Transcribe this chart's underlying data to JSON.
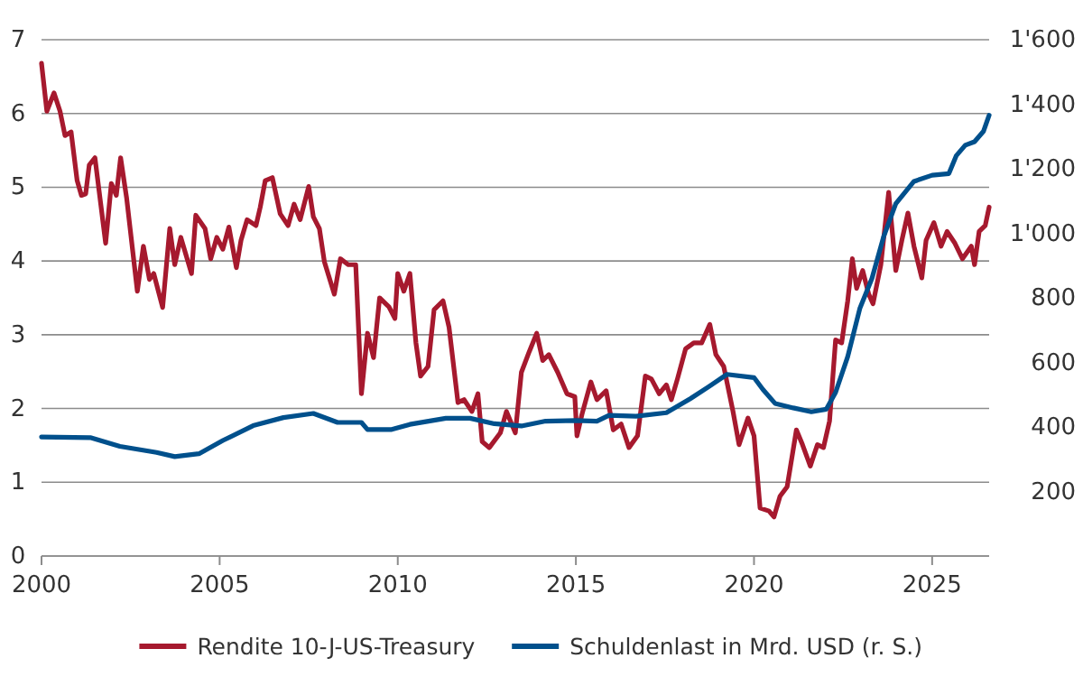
{
  "chart_data": {
    "type": "line",
    "legend": "bottom",
    "grid": "y",
    "xlim": [
      2000,
      2026.6
    ],
    "xticks": [
      2000,
      2005,
      2010,
      2015,
      2020,
      2025
    ],
    "ylim": [
      0,
      7
    ],
    "yticks": [
      0,
      1,
      2,
      3,
      4,
      5,
      6,
      7
    ],
    "y2lim": [
      0,
      1600
    ],
    "y2ticks": [
      200,
      400,
      600,
      800,
      {
        "value": 1000,
        "label": "1'000"
      },
      {
        "value": 1200,
        "label": "1'200"
      },
      {
        "value": 1400,
        "label": "1'400"
      },
      {
        "value": 1600,
        "label": "1'600"
      }
    ],
    "series": [
      {
        "name": "Rendite 10-J-US-Treasury",
        "color": "#a6192e",
        "x": [
          2000.0,
          2000.15,
          2000.35,
          2000.52,
          2000.66,
          2000.83,
          2001.0,
          2001.12,
          2001.24,
          2001.34,
          2001.5,
          2001.8,
          2001.96,
          2002.1,
          2002.22,
          2002.39,
          2002.69,
          2002.86,
          2003.03,
          2003.15,
          2003.4,
          2003.6,
          2003.74,
          2003.91,
          2004.21,
          2004.33,
          2004.59,
          2004.75,
          2004.92,
          2005.09,
          2005.26,
          2005.47,
          2005.6,
          2005.77,
          2006.02,
          2006.14,
          2006.28,
          2006.48,
          2006.7,
          2006.92,
          2007.09,
          2007.26,
          2007.5,
          2007.63,
          2007.8,
          2007.94,
          2008.22,
          2008.39,
          2008.61,
          2008.82,
          2008.98,
          2009.15,
          2009.32,
          2009.49,
          2009.75,
          2009.92,
          2010.0,
          2010.17,
          2010.34,
          2010.51,
          2010.64,
          2010.85,
          2011.02,
          2011.27,
          2011.44,
          2011.69,
          2011.86,
          2012.08,
          2012.25,
          2012.37,
          2012.57,
          2012.88,
          2013.05,
          2013.3,
          2013.47,
          2013.69,
          2013.9,
          2014.07,
          2014.24,
          2014.49,
          2014.75,
          2014.97,
          2015.03,
          2015.17,
          2015.42,
          2015.59,
          2015.85,
          2016.05,
          2016.27,
          2016.49,
          2016.73,
          2016.95,
          2017.12,
          2017.34,
          2017.54,
          2017.68,
          2017.85,
          2018.08,
          2018.31,
          2018.53,
          2018.76,
          2018.93,
          2019.15,
          2019.41,
          2019.58,
          2019.83,
          2020.0,
          2020.17,
          2020.42,
          2020.56,
          2020.73,
          2020.93,
          2021.19,
          2021.36,
          2021.58,
          2021.78,
          2021.95,
          2022.12,
          2022.29,
          2022.46,
          2022.63,
          2022.76,
          2022.88,
          2023.05,
          2023.22,
          2023.34,
          2023.56,
          2023.78,
          2023.98,
          2024.15,
          2024.32,
          2024.49,
          2024.71,
          2024.83,
          2025.05,
          2025.25,
          2025.42,
          2025.64,
          2025.85,
          2026.1,
          2026.19,
          2026.32,
          2026.49,
          2026.6
        ],
        "values": [
          6.68,
          6.03,
          6.28,
          6.03,
          5.7,
          5.75,
          5.09,
          4.89,
          4.91,
          5.3,
          5.4,
          4.24,
          5.05,
          4.89,
          5.4,
          4.85,
          3.59,
          4.2,
          3.75,
          3.83,
          3.37,
          4.44,
          3.95,
          4.32,
          3.83,
          4.62,
          4.44,
          4.03,
          4.32,
          4.16,
          4.46,
          3.91,
          4.28,
          4.56,
          4.48,
          4.73,
          5.09,
          5.13,
          4.64,
          4.48,
          4.77,
          4.56,
          5.01,
          4.6,
          4.44,
          3.99,
          3.55,
          4.03,
          3.95,
          3.95,
          2.2,
          3.02,
          2.69,
          3.5,
          3.38,
          3.22,
          3.83,
          3.59,
          3.83,
          2.89,
          2.44,
          2.57,
          3.34,
          3.46,
          3.1,
          2.08,
          2.12,
          1.96,
          2.2,
          1.55,
          1.47,
          1.67,
          1.96,
          1.67,
          2.49,
          2.77,
          3.02,
          2.65,
          2.73,
          2.49,
          2.2,
          2.16,
          1.63,
          1.92,
          2.36,
          2.12,
          2.24,
          1.71,
          1.79,
          1.47,
          1.63,
          2.44,
          2.4,
          2.2,
          2.32,
          2.12,
          2.4,
          2.81,
          2.89,
          2.89,
          3.14,
          2.73,
          2.57,
          1.96,
          1.51,
          1.87,
          1.63,
          0.65,
          0.61,
          0.53,
          0.81,
          0.94,
          1.71,
          1.51,
          1.22,
          1.51,
          1.47,
          1.83,
          2.93,
          2.89,
          3.46,
          4.03,
          3.63,
          3.87,
          3.55,
          3.42,
          3.95,
          4.93,
          3.87,
          4.28,
          4.65,
          4.2,
          3.77,
          4.28,
          4.52,
          4.2,
          4.4,
          4.24,
          4.03,
          4.2,
          3.95,
          4.4,
          4.48,
          4.73
        ]
      },
      {
        "name": "Schuldenlast in Mrd. USD (r. S.)",
        "color": "#00508c",
        "axis": "y2",
        "x": [
          2000.0,
          2001.37,
          2002.2,
          2003.23,
          2003.74,
          2004.42,
          2005.09,
          2005.94,
          2006.79,
          2007.63,
          2008.31,
          2008.98,
          2009.15,
          2009.83,
          2010.34,
          2011.35,
          2012.03,
          2012.71,
          2013.47,
          2014.15,
          2015.0,
          2015.59,
          2015.93,
          2016.69,
          2017.54,
          2018.22,
          2018.73,
          2019.24,
          2020.0,
          2020.25,
          2020.59,
          2021.1,
          2021.61,
          2022.03,
          2022.29,
          2022.63,
          2022.97,
          2023.31,
          2023.64,
          2023.98,
          2024.49,
          2025.0,
          2025.47,
          2025.68,
          2025.93,
          2026.19,
          2026.44,
          2026.6
        ],
        "values": [
          369,
          367,
          340,
          321,
          308,
          317,
          358,
          404,
          429,
          442,
          414,
          414,
          392,
          392,
          408,
          427,
          427,
          410,
          403,
          418,
          420,
          418,
          436,
          433,
          444,
          488,
          525,
          563,
          553,
          516,
          473,
          459,
          447,
          455,
          507,
          618,
          767,
          860,
          990,
          1092,
          1161,
          1180,
          1185,
          1241,
          1273,
          1284,
          1316,
          1366
        ]
      }
    ]
  }
}
